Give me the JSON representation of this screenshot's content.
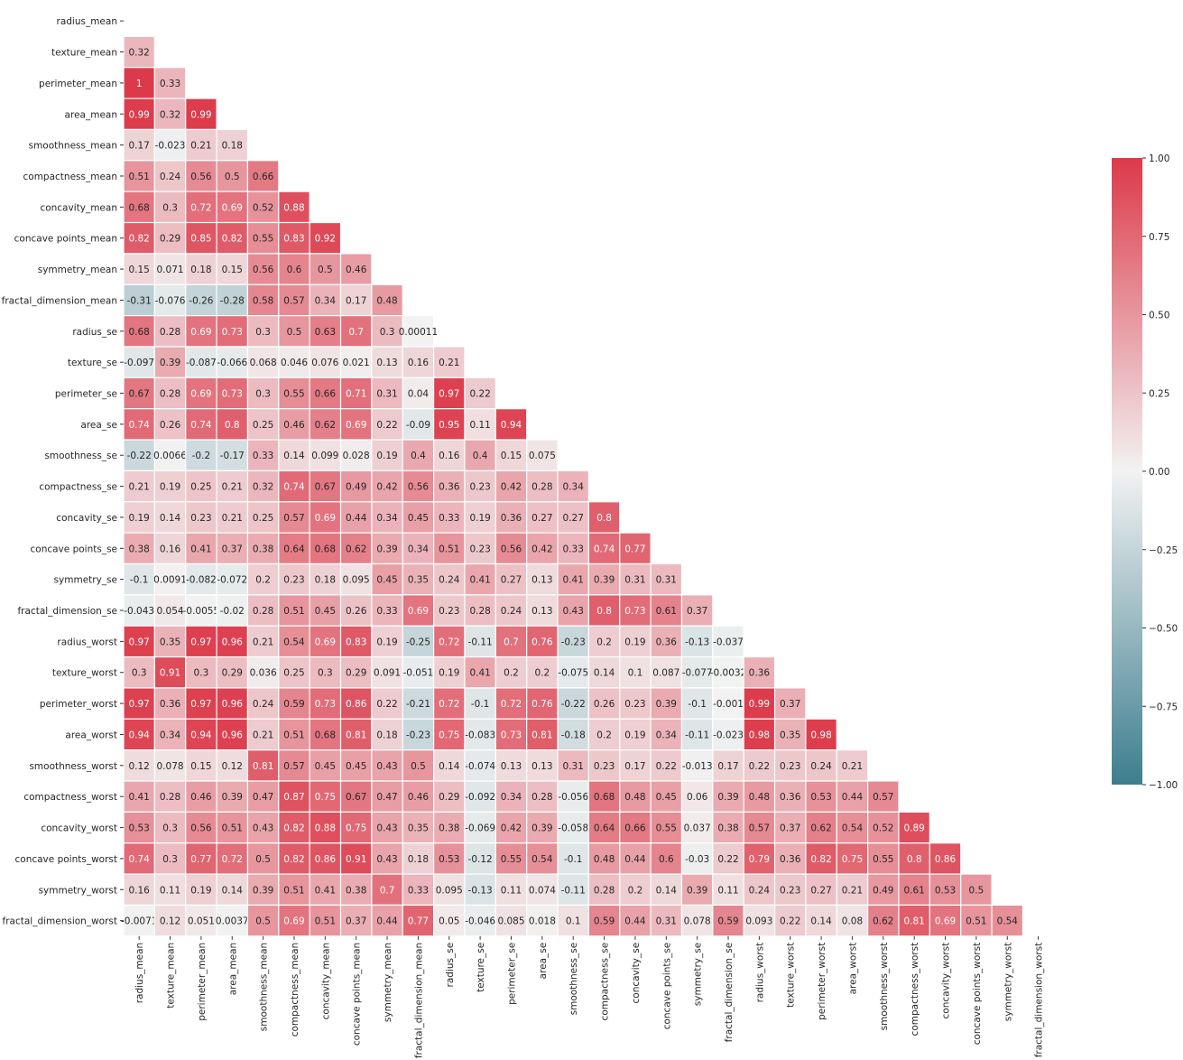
{
  "chart_data": {
    "type": "heatmap",
    "title": "",
    "xlabel": "",
    "ylabel": "",
    "mask": "upper-triangle",
    "labels": [
      "radius_mean",
      "texture_mean",
      "perimeter_mean",
      "area_mean",
      "smoothness_mean",
      "compactness_mean",
      "concavity_mean",
      "concave points_mean",
      "symmetry_mean",
      "fractal_dimension_mean",
      "radius_se",
      "texture_se",
      "perimeter_se",
      "area_se",
      "smoothness_se",
      "compactness_se",
      "concavity_se",
      "concave points_se",
      "symmetry_se",
      "fractal_dimension_se",
      "radius_worst",
      "texture_worst",
      "perimeter_worst",
      "area_worst",
      "smoothness_worst",
      "compactness_worst",
      "concavity_worst",
      "concave points_worst",
      "symmetry_worst",
      "fractal_dimension_worst"
    ],
    "rows": [
      [],
      [
        "0.32"
      ],
      [
        "1",
        "0.33"
      ],
      [
        "0.99",
        "0.32",
        "0.99"
      ],
      [
        "0.17",
        "-0.023",
        "0.21",
        "0.18"
      ],
      [
        "0.51",
        "0.24",
        "0.56",
        "0.5",
        "0.66"
      ],
      [
        "0.68",
        "0.3",
        "0.72",
        "0.69",
        "0.52",
        "0.88"
      ],
      [
        "0.82",
        "0.29",
        "0.85",
        "0.82",
        "0.55",
        "0.83",
        "0.92"
      ],
      [
        "0.15",
        "0.071",
        "0.18",
        "0.15",
        "0.56",
        "0.6",
        "0.5",
        "0.46"
      ],
      [
        "-0.31",
        "-0.076",
        "-0.26",
        "-0.28",
        "0.58",
        "0.57",
        "0.34",
        "0.17",
        "0.48"
      ],
      [
        "0.68",
        "0.28",
        "0.69",
        "0.73",
        "0.3",
        "0.5",
        "0.63",
        "0.7",
        "0.3",
        "0.00011"
      ],
      [
        "-0.097",
        "0.39",
        "-0.087",
        "-0.066",
        "0.068",
        "0.046",
        "0.076",
        "0.021",
        "0.13",
        "0.16",
        "0.21"
      ],
      [
        "0.67",
        "0.28",
        "0.69",
        "0.73",
        "0.3",
        "0.55",
        "0.66",
        "0.71",
        "0.31",
        "0.04",
        "0.97",
        "0.22"
      ],
      [
        "0.74",
        "0.26",
        "0.74",
        "0.8",
        "0.25",
        "0.46",
        "0.62",
        "0.69",
        "0.22",
        "-0.09",
        "0.95",
        "0.11",
        "0.94"
      ],
      [
        "-0.22",
        "0.0066",
        "-0.2",
        "-0.17",
        "0.33",
        "0.14",
        "0.099",
        "0.028",
        "0.19",
        "0.4",
        "0.16",
        "0.4",
        "0.15",
        "0.075"
      ],
      [
        "0.21",
        "0.19",
        "0.25",
        "0.21",
        "0.32",
        "0.74",
        "0.67",
        "0.49",
        "0.42",
        "0.56",
        "0.36",
        "0.23",
        "0.42",
        "0.28",
        "0.34"
      ],
      [
        "0.19",
        "0.14",
        "0.23",
        "0.21",
        "0.25",
        "0.57",
        "0.69",
        "0.44",
        "0.34",
        "0.45",
        "0.33",
        "0.19",
        "0.36",
        "0.27",
        "0.27",
        "0.8"
      ],
      [
        "0.38",
        "0.16",
        "0.41",
        "0.37",
        "0.38",
        "0.64",
        "0.68",
        "0.62",
        "0.39",
        "0.34",
        "0.51",
        "0.23",
        "0.56",
        "0.42",
        "0.33",
        "0.74",
        "0.77"
      ],
      [
        "-0.1",
        "0.0091",
        "-0.082",
        "-0.072",
        "0.2",
        "0.23",
        "0.18",
        "0.095",
        "0.45",
        "0.35",
        "0.24",
        "0.41",
        "0.27",
        "0.13",
        "0.41",
        "0.39",
        "0.31",
        "0.31"
      ],
      [
        "-0.043",
        "0.054",
        "-0.0055",
        "-0.02",
        "0.28",
        "0.51",
        "0.45",
        "0.26",
        "0.33",
        "0.69",
        "0.23",
        "0.28",
        "0.24",
        "0.13",
        "0.43",
        "0.8",
        "0.73",
        "0.61",
        "0.37"
      ],
      [
        "0.97",
        "0.35",
        "0.97",
        "0.96",
        "0.21",
        "0.54",
        "0.69",
        "0.83",
        "0.19",
        "-0.25",
        "0.72",
        "-0.11",
        "0.7",
        "0.76",
        "-0.23",
        "0.2",
        "0.19",
        "0.36",
        "-0.13",
        "-0.037"
      ],
      [
        "0.3",
        "0.91",
        "0.3",
        "0.29",
        "0.036",
        "0.25",
        "0.3",
        "0.29",
        "0.091",
        "-0.051",
        "0.19",
        "0.41",
        "0.2",
        "0.2",
        "-0.075",
        "0.14",
        "0.1",
        "0.087",
        "-0.077",
        "-0.0032",
        "0.36"
      ],
      [
        "0.97",
        "0.36",
        "0.97",
        "0.96",
        "0.24",
        "0.59",
        "0.73",
        "0.86",
        "0.22",
        "-0.21",
        "0.72",
        "-0.1",
        "0.72",
        "0.76",
        "-0.22",
        "0.26",
        "0.23",
        "0.39",
        "-0.1",
        "-0.001",
        "0.99",
        "0.37"
      ],
      [
        "0.94",
        "0.34",
        "0.94",
        "0.96",
        "0.21",
        "0.51",
        "0.68",
        "0.81",
        "0.18",
        "-0.23",
        "0.75",
        "-0.083",
        "0.73",
        "0.81",
        "-0.18",
        "0.2",
        "0.19",
        "0.34",
        "-0.11",
        "-0.023",
        "0.98",
        "0.35",
        "0.98"
      ],
      [
        "0.12",
        "0.078",
        "0.15",
        "0.12",
        "0.81",
        "0.57",
        "0.45",
        "0.45",
        "0.43",
        "0.5",
        "0.14",
        "-0.074",
        "0.13",
        "0.13",
        "0.31",
        "0.23",
        "0.17",
        "0.22",
        "-0.013",
        "0.17",
        "0.22",
        "0.23",
        "0.24",
        "0.21"
      ],
      [
        "0.41",
        "0.28",
        "0.46",
        "0.39",
        "0.47",
        "0.87",
        "0.75",
        "0.67",
        "0.47",
        "0.46",
        "0.29",
        "-0.092",
        "0.34",
        "0.28",
        "-0.056",
        "0.68",
        "0.48",
        "0.45",
        "0.06",
        "0.39",
        "0.48",
        "0.36",
        "0.53",
        "0.44",
        "0.57"
      ],
      [
        "0.53",
        "0.3",
        "0.56",
        "0.51",
        "0.43",
        "0.82",
        "0.88",
        "0.75",
        "0.43",
        "0.35",
        "0.38",
        "-0.069",
        "0.42",
        "0.39",
        "-0.058",
        "0.64",
        "0.66",
        "0.55",
        "0.037",
        "0.38",
        "0.57",
        "0.37",
        "0.62",
        "0.54",
        "0.52",
        "0.89"
      ],
      [
        "0.74",
        "0.3",
        "0.77",
        "0.72",
        "0.5",
        "0.82",
        "0.86",
        "0.91",
        "0.43",
        "0.18",
        "0.53",
        "-0.12",
        "0.55",
        "0.54",
        "-0.1",
        "0.48",
        "0.44",
        "0.6",
        "-0.03",
        "0.22",
        "0.79",
        "0.36",
        "0.82",
        "0.75",
        "0.55",
        "0.8",
        "0.86"
      ],
      [
        "0.16",
        "0.11",
        "0.19",
        "0.14",
        "0.39",
        "0.51",
        "0.41",
        "0.38",
        "0.7",
        "0.33",
        "0.095",
        "-0.13",
        "0.11",
        "0.074",
        "-0.11",
        "0.28",
        "0.2",
        "0.14",
        "0.39",
        "0.11",
        "0.24",
        "0.23",
        "0.27",
        "0.21",
        "0.49",
        "0.61",
        "0.53",
        "0.5"
      ],
      [
        "-0.0071",
        "0.12",
        "0.051",
        "0.0037",
        "0.5",
        "0.69",
        "0.51",
        "0.37",
        "0.44",
        "0.77",
        "0.05",
        "-0.046",
        "0.085",
        "0.018",
        "0.1",
        "0.59",
        "0.44",
        "0.31",
        "0.078",
        "0.59",
        "0.093",
        "0.22",
        "0.14",
        "0.08",
        "0.62",
        "0.81",
        "0.69",
        "0.51",
        "0.54"
      ]
    ],
    "colorbar": {
      "min": -1.0,
      "max": 1.0,
      "ticks": [
        1.0,
        0.75,
        0.5,
        0.25,
        0.0,
        -0.25,
        -0.5,
        -0.75,
        -1.0
      ],
      "tick_labels": [
        "1.00",
        "0.75",
        "0.50",
        "0.25",
        "0.00",
        "−0.25",
        "−0.50",
        "−0.75",
        "−1.00"
      ],
      "color_low": "#3d7e8e",
      "color_mid": "#f2f2f2",
      "color_high": "#dc3a4a"
    },
    "grid": true,
    "legend": "colorbar-right"
  }
}
